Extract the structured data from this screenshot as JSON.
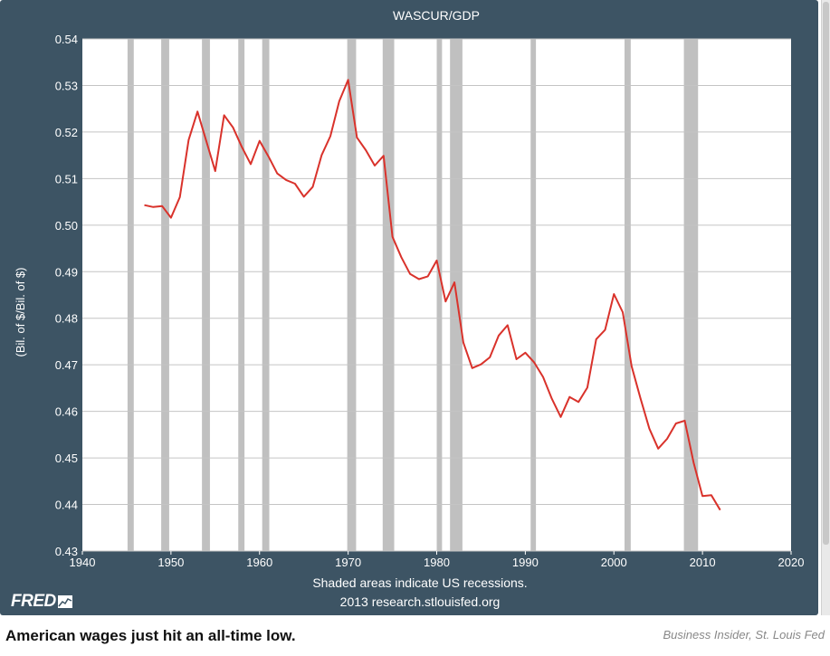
{
  "chart_data": {
    "type": "line",
    "title": "WASCUR/GDP",
    "ylabel": "(Bil. of $/Bil. of $)",
    "xlabel": "",
    "xlim": [
      1940,
      2020
    ],
    "ylim": [
      0.43,
      0.54
    ],
    "x_ticks": [
      "1940",
      "1950",
      "1960",
      "1970",
      "1980",
      "1990",
      "2000",
      "2010",
      "2020"
    ],
    "y_ticks": [
      "0.54",
      "0.53",
      "0.52",
      "0.51",
      "0.50",
      "0.49",
      "0.48",
      "0.47",
      "0.46",
      "0.45",
      "0.44",
      "0.43"
    ],
    "grid": true,
    "line_color": "#d9322b",
    "recession_color": "#c0c0c0",
    "recessions": [
      [
        1945.1,
        1945.8
      ],
      [
        1948.9,
        1949.8
      ],
      [
        1953.5,
        1954.4
      ],
      [
        1957.6,
        1958.3
      ],
      [
        1960.3,
        1961.1
      ],
      [
        1969.9,
        1970.9
      ],
      [
        1973.9,
        1975.2
      ],
      [
        1980.0,
        1980.6
      ],
      [
        1981.5,
        1982.9
      ],
      [
        1990.6,
        1991.2
      ],
      [
        2001.2,
        2001.9
      ],
      [
        2007.9,
        2009.5
      ]
    ],
    "series": [
      {
        "x": [
          1947,
          1948,
          1949,
          1950,
          1951,
          1952,
          1953,
          1954,
          1955,
          1956,
          1957,
          1958,
          1959,
          1960,
          1961,
          1962,
          1963,
          1964,
          1965,
          1966,
          1967,
          1968,
          1969,
          1970,
          1971,
          1972,
          1973,
          1974,
          1975,
          1976,
          1977,
          1978,
          1979,
          1980,
          1981,
          1982,
          1983,
          1984,
          1985,
          1986,
          1987,
          1988,
          1989,
          1990,
          1991,
          1992,
          1993,
          1994,
          1995,
          1996,
          1997,
          1998,
          1999,
          2000,
          2001,
          2002,
          2003,
          2004,
          2005,
          2006,
          2007,
          2008,
          2009,
          2010,
          2011,
          2012
        ],
        "values": [
          0.5043,
          0.5039,
          0.5041,
          0.5016,
          0.506,
          0.5183,
          0.5244,
          0.518,
          0.5116,
          0.5236,
          0.521,
          0.5168,
          0.5131,
          0.5181,
          0.5148,
          0.5111,
          0.5097,
          0.5089,
          0.5061,
          0.5082,
          0.515,
          0.5191,
          0.5266,
          0.5312,
          0.5188,
          0.5161,
          0.5128,
          0.5149,
          0.4975,
          0.4931,
          0.4895,
          0.4884,
          0.489,
          0.4924,
          0.4836,
          0.4877,
          0.4748,
          0.4693,
          0.4701,
          0.4716,
          0.4763,
          0.4785,
          0.4712,
          0.4726,
          0.4705,
          0.4674,
          0.4627,
          0.4588,
          0.4631,
          0.462,
          0.4651,
          0.4755,
          0.4775,
          0.4852,
          0.4813,
          0.4697,
          0.4628,
          0.4563,
          0.452,
          0.4541,
          0.4574,
          0.458,
          0.449,
          0.4418,
          0.442,
          0.4388
        ]
      }
    ]
  },
  "footer": {
    "note_line1": "Shaded areas indicate US recessions.",
    "note_line2": "2013 research.stlouisfed.org",
    "logo_text": "FRED"
  },
  "caption": "American wages just hit an all-time low.",
  "credit": "Business Insider, St. Louis Fed"
}
